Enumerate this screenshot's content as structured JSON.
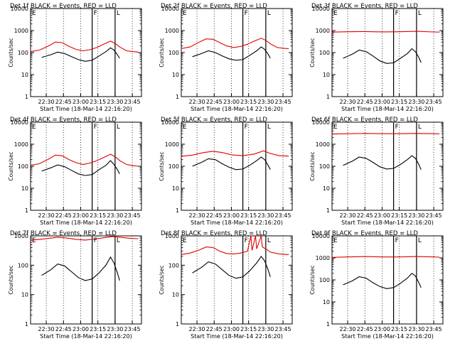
{
  "figure": {
    "background": "#ffffff",
    "events_color": "#000000",
    "lld_color": "#e00000"
  },
  "chart_data": [
    {
      "type": "line",
      "title": "Det 1f BLACK = Events, RED = LLD",
      "xlabel": "Start Time (18-Mar-14 22:16:20)",
      "ylabel": "Counts/sec",
      "yscale": "log",
      "ylim": [
        1,
        10000
      ],
      "x_ticks": [
        "22:30",
        "22:45",
        "23:00",
        "23:15",
        "23:30",
        "23:45"
      ],
      "y_ticks": [
        "1",
        "10",
        "100",
        "1000",
        "10000"
      ],
      "flag_labels": [
        "E",
        "F",
        "L"
      ],
      "series": [
        {
          "name": "Events",
          "x": [
            "22:26",
            "22:34",
            "22:40",
            "22:46",
            "22:52",
            "22:58",
            "23:04",
            "23:10",
            "23:16",
            "23:22",
            "23:26",
            "23:29",
            "23:32",
            "23:34"
          ],
          "values": [
            60,
            80,
            105,
            90,
            65,
            48,
            40,
            45,
            70,
            110,
            165,
            130,
            80,
            55
          ]
        },
        {
          "name": "LLD",
          "x": [
            "22:16",
            "22:24",
            "22:32",
            "22:38",
            "22:44",
            "22:50",
            "22:56",
            "23:02",
            "23:08",
            "23:14",
            "23:20",
            "23:26",
            "23:30",
            "23:34",
            "23:40",
            "23:46",
            "23:50"
          ],
          "values": [
            110,
            130,
            200,
            300,
            280,
            190,
            140,
            120,
            135,
            170,
            240,
            330,
            260,
            180,
            120,
            110,
            105
          ]
        }
      ]
    },
    {
      "type": "line",
      "title": "Det 2f BLACK = Events, RED = LLD",
      "xlabel": "Start Time (18-Mar-14 22:16:20)",
      "ylabel": "Counts/sec",
      "yscale": "log",
      "ylim": [
        1,
        10000
      ],
      "x_ticks": [
        "22:30",
        "22:45",
        "23:00",
        "23:15",
        "23:30",
        "23:45"
      ],
      "y_ticks": [
        "1",
        "10",
        "100",
        "1000",
        "10000"
      ],
      "flag_labels": [
        "E",
        "F",
        "L"
      ],
      "series": [
        {
          "name": "Events",
          "x": [
            "22:26",
            "22:34",
            "22:40",
            "22:46",
            "22:52",
            "22:58",
            "23:04",
            "23:10",
            "23:16",
            "23:22",
            "23:26",
            "23:29",
            "23:32",
            "23:34"
          ],
          "values": [
            65,
            90,
            120,
            100,
            70,
            52,
            45,
            48,
            75,
            120,
            180,
            140,
            85,
            55
          ]
        },
        {
          "name": "LLD",
          "x": [
            "22:16",
            "22:24",
            "22:32",
            "22:38",
            "22:44",
            "22:50",
            "22:56",
            "23:02",
            "23:08",
            "23:14",
            "23:20",
            "23:26",
            "23:30",
            "23:34",
            "23:40",
            "23:46",
            "23:50"
          ],
          "values": [
            150,
            180,
            300,
            420,
            400,
            280,
            200,
            170,
            190,
            240,
            330,
            450,
            360,
            250,
            170,
            155,
            150
          ]
        }
      ]
    },
    {
      "type": "line",
      "title": "Det 3f BLACK = Events, RED = LLD",
      "xlabel": "Start Time (18-Mar-14 22:16:20)",
      "ylabel": "Counts/sec",
      "yscale": "log",
      "ylim": [
        1,
        10000
      ],
      "x_ticks": [
        "22:30",
        "22:45",
        "23:00",
        "23:15",
        "23:30",
        "23:45"
      ],
      "y_ticks": [
        "1",
        "10",
        "100",
        "1000",
        "10000"
      ],
      "flag_labels": [
        "E",
        "F",
        "L"
      ],
      "series": [
        {
          "name": "Events",
          "x": [
            "22:26",
            "22:34",
            "22:40",
            "22:46",
            "22:52",
            "22:58",
            "23:04",
            "23:10",
            "23:16",
            "23:22",
            "23:26",
            "23:29",
            "23:32",
            "23:34"
          ],
          "values": [
            55,
            85,
            130,
            110,
            70,
            42,
            32,
            34,
            55,
            90,
            150,
            110,
            60,
            35
          ]
        },
        {
          "name": "LLD",
          "x": [
            "22:16",
            "22:30",
            "22:45",
            "23:00",
            "23:15",
            "23:30",
            "23:45",
            "23:50"
          ],
          "values": [
            850,
            880,
            900,
            870,
            880,
            920,
            860,
            850
          ]
        }
      ]
    },
    {
      "type": "line",
      "title": "Det 4f BLACK = Events, RED = LLD",
      "xlabel": "Start Time (18-Mar-14 22:16:20)",
      "ylabel": "Counts/sec",
      "yscale": "log",
      "ylim": [
        1,
        10000
      ],
      "x_ticks": [
        "22:30",
        "22:45",
        "23:00",
        "23:15",
        "23:30",
        "23:45"
      ],
      "y_ticks": [
        "1",
        "10",
        "100",
        "1000",
        "10000"
      ],
      "flag_labels": [
        "E",
        "F",
        "L"
      ],
      "series": [
        {
          "name": "Events",
          "x": [
            "22:26",
            "22:34",
            "22:40",
            "22:46",
            "22:52",
            "22:58",
            "23:04",
            "23:10",
            "23:16",
            "23:22",
            "23:26",
            "23:29",
            "23:32",
            "23:34"
          ],
          "values": [
            60,
            85,
            115,
            95,
            65,
            45,
            38,
            42,
            70,
            110,
            180,
            120,
            70,
            45
          ]
        },
        {
          "name": "LLD",
          "x": [
            "22:16",
            "22:24",
            "22:32",
            "22:38",
            "22:44",
            "22:50",
            "22:56",
            "23:02",
            "23:08",
            "23:14",
            "23:20",
            "23:26",
            "23:30",
            "23:34",
            "23:40",
            "23:46",
            "23:50"
          ],
          "values": [
            110,
            130,
            210,
            320,
            300,
            200,
            145,
            120,
            140,
            180,
            250,
            350,
            270,
            180,
            120,
            105,
            100
          ]
        }
      ]
    },
    {
      "type": "line",
      "title": "Det 5f BLACK = Events, RED = LLD",
      "xlabel": "Start Time (18-Mar-14 22:16:20)",
      "ylabel": "Counts/sec",
      "yscale": "log",
      "ylim": [
        1,
        10000
      ],
      "x_ticks": [
        "22:30",
        "22:45",
        "23:00",
        "23:15",
        "23:30",
        "23:45"
      ],
      "y_ticks": [
        "1",
        "10",
        "100",
        "1000",
        "10000"
      ],
      "flag_labels": [
        "E",
        "F",
        "L"
      ],
      "series": [
        {
          "name": "Events",
          "x": [
            "22:26",
            "22:34",
            "22:40",
            "22:46",
            "22:52",
            "22:58",
            "23:04",
            "23:10",
            "23:16",
            "23:22",
            "23:26",
            "23:29",
            "23:32",
            "23:34"
          ],
          "values": [
            100,
            150,
            220,
            200,
            130,
            90,
            70,
            75,
            110,
            180,
            260,
            200,
            110,
            70
          ]
        },
        {
          "name": "LLD",
          "x": [
            "22:16",
            "22:26",
            "22:36",
            "22:44",
            "22:52",
            "23:00",
            "23:10",
            "23:20",
            "23:28",
            "23:34",
            "23:42",
            "23:50"
          ],
          "values": [
            280,
            320,
            420,
            480,
            420,
            330,
            300,
            360,
            500,
            380,
            300,
            290
          ]
        }
      ]
    },
    {
      "type": "line",
      "title": "Det 6f BLACK = Events, RED = LLD",
      "xlabel": "Start Time (18-Mar-14 22:16:20)",
      "ylabel": "Counts/sec",
      "yscale": "log",
      "ylim": [
        1,
        10000
      ],
      "x_ticks": [
        "22:30",
        "22:45",
        "23:00",
        "23:15",
        "23:30",
        "23:45"
      ],
      "y_ticks": [
        "1",
        "10",
        "100",
        "1000",
        "10000"
      ],
      "flag_labels": [
        "E",
        "F",
        "L"
      ],
      "series": [
        {
          "name": "Events",
          "x": [
            "22:26",
            "22:34",
            "22:40",
            "22:46",
            "22:52",
            "22:58",
            "23:04",
            "23:10",
            "23:16",
            "23:22",
            "23:26",
            "23:29",
            "23:32",
            "23:34"
          ],
          "values": [
            110,
            170,
            260,
            230,
            150,
            95,
            75,
            80,
            120,
            200,
            300,
            230,
            120,
            70
          ]
        },
        {
          "name": "LLD",
          "x": [
            "22:16",
            "22:30",
            "22:45",
            "23:00",
            "23:15",
            "23:30",
            "23:45",
            "23:50"
          ],
          "values": [
            2900,
            3000,
            3100,
            3000,
            3000,
            3100,
            3000,
            2950
          ]
        }
      ]
    },
    {
      "type": "line",
      "title": "Det 7f BLACK = Events, RED = LLD",
      "xlabel": "Start Time (18-Mar-14 22:16:20)",
      "ylabel": "Counts/sec",
      "yscale": "log",
      "ylim": [
        1,
        1000
      ],
      "x_ticks": [
        "22:30",
        "22:45",
        "23:00",
        "23:15",
        "23:30",
        "23:45"
      ],
      "y_ticks": [
        "1",
        "10",
        "100",
        "1000"
      ],
      "flag_labels": [
        "E",
        "F",
        "L"
      ],
      "series": [
        {
          "name": "Events",
          "x": [
            "22:26",
            "22:34",
            "22:40",
            "22:46",
            "22:52",
            "22:58",
            "23:04",
            "23:10",
            "23:16",
            "23:22",
            "23:26",
            "23:29",
            "23:32",
            "23:34"
          ],
          "values": [
            45,
            70,
            110,
            95,
            60,
            38,
            30,
            34,
            55,
            100,
            190,
            120,
            55,
            30
          ]
        },
        {
          "name": "LLD",
          "x": [
            "22:16",
            "22:24",
            "22:32",
            "22:40",
            "22:48",
            "22:56",
            "23:04",
            "23:12",
            "23:20",
            "23:28",
            "23:36",
            "23:44",
            "23:50"
          ],
          "values": [
            700,
            760,
            820,
            900,
            840,
            760,
            720,
            780,
            860,
            950,
            880,
            820,
            800
          ]
        }
      ]
    },
    {
      "type": "line",
      "title": "Det 8f BLACK = Events, RED = LLD",
      "xlabel": "Start Time (18-Mar-14 22:16:20)",
      "ylabel": "Counts/sec",
      "yscale": "log",
      "ylim": [
        1,
        1000
      ],
      "x_ticks": [
        "22:30",
        "22:45",
        "23:00",
        "23:15",
        "23:30",
        "23:45"
      ],
      "y_ticks": [
        "1",
        "10",
        "100",
        "1000"
      ],
      "flag_labels": [
        "E",
        "F",
        "L"
      ],
      "series": [
        {
          "name": "Events",
          "x": [
            "22:26",
            "22:34",
            "22:40",
            "22:46",
            "22:52",
            "22:58",
            "23:04",
            "23:10",
            "23:16",
            "23:22",
            "23:26",
            "23:29",
            "23:32",
            "23:34"
          ],
          "values": [
            55,
            85,
            130,
            110,
            70,
            45,
            36,
            40,
            65,
            120,
            200,
            140,
            70,
            40
          ]
        },
        {
          "name": "LLD",
          "x": [
            "22:16",
            "22:24",
            "22:32",
            "22:38",
            "22:44",
            "22:50",
            "22:56",
            "23:02",
            "23:08",
            "23:14",
            "23:17",
            "23:18",
            "23:21",
            "23:22",
            "23:26",
            "23:27",
            "23:30",
            "23:34",
            "23:42",
            "23:50"
          ],
          "values": [
            230,
            260,
            330,
            420,
            400,
            300,
            250,
            240,
            260,
            300,
            1000,
            320,
            1000,
            360,
            1000,
            420,
            360,
            280,
            240,
            230
          ]
        }
      ]
    },
    {
      "type": "line",
      "title": "Det 9f BLACK = Events, RED = LLD",
      "xlabel": "Start Time (18-Mar-14 22:16:20)",
      "ylabel": "Counts/sec",
      "yscale": "log",
      "ylim": [
        1,
        10000
      ],
      "x_ticks": [
        "22:30",
        "22:45",
        "23:00",
        "23:15",
        "23:30",
        "23:45"
      ],
      "y_ticks": [
        "1",
        "10",
        "100",
        "1000",
        "10000"
      ],
      "flag_labels": [
        "E",
        "F",
        "L"
      ],
      "series": [
        {
          "name": "Events",
          "x": [
            "22:26",
            "22:34",
            "22:40",
            "22:46",
            "22:52",
            "22:58",
            "23:04",
            "23:10",
            "23:16",
            "23:22",
            "23:26",
            "23:29",
            "23:32",
            "23:34"
          ],
          "values": [
            60,
            90,
            140,
            120,
            75,
            50,
            40,
            45,
            70,
            120,
            200,
            150,
            75,
            45
          ]
        },
        {
          "name": "LLD",
          "x": [
            "22:16",
            "22:30",
            "22:45",
            "23:00",
            "23:15",
            "23:30",
            "23:45",
            "23:50"
          ],
          "values": [
            1050,
            1100,
            1150,
            1100,
            1100,
            1150,
            1100,
            1080
          ]
        }
      ]
    }
  ]
}
